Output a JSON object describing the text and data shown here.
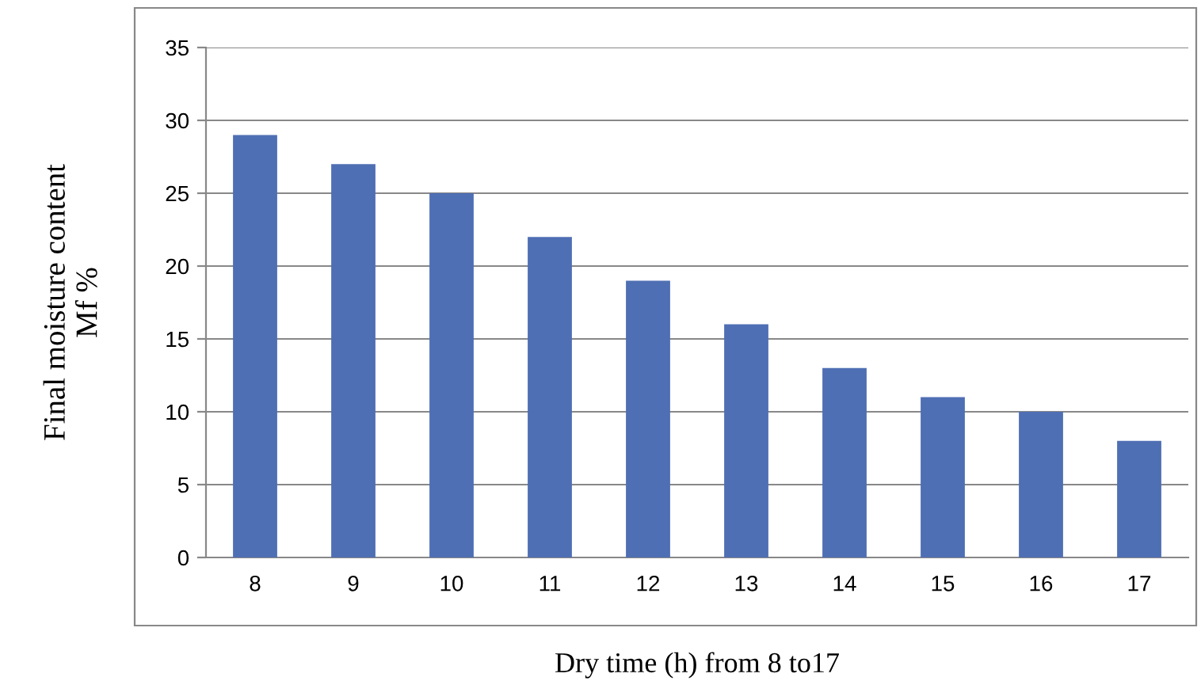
{
  "chart_data": {
    "type": "bar",
    "xlabel": "Dry time (h) from 8 to17",
    "ylabel": "Final moisture content\nMf %",
    "categories": [
      "8",
      "9",
      "10",
      "11",
      "12",
      "13",
      "14",
      "15",
      "16",
      "17"
    ],
    "values": [
      29,
      27,
      25,
      22,
      19,
      16,
      13,
      11,
      10,
      8
    ],
    "color": "#4f6fb4",
    "ylim": [
      0,
      35
    ],
    "yticks": [
      0,
      5,
      10,
      15,
      20,
      25,
      30,
      35
    ],
    "grid": "y"
  }
}
